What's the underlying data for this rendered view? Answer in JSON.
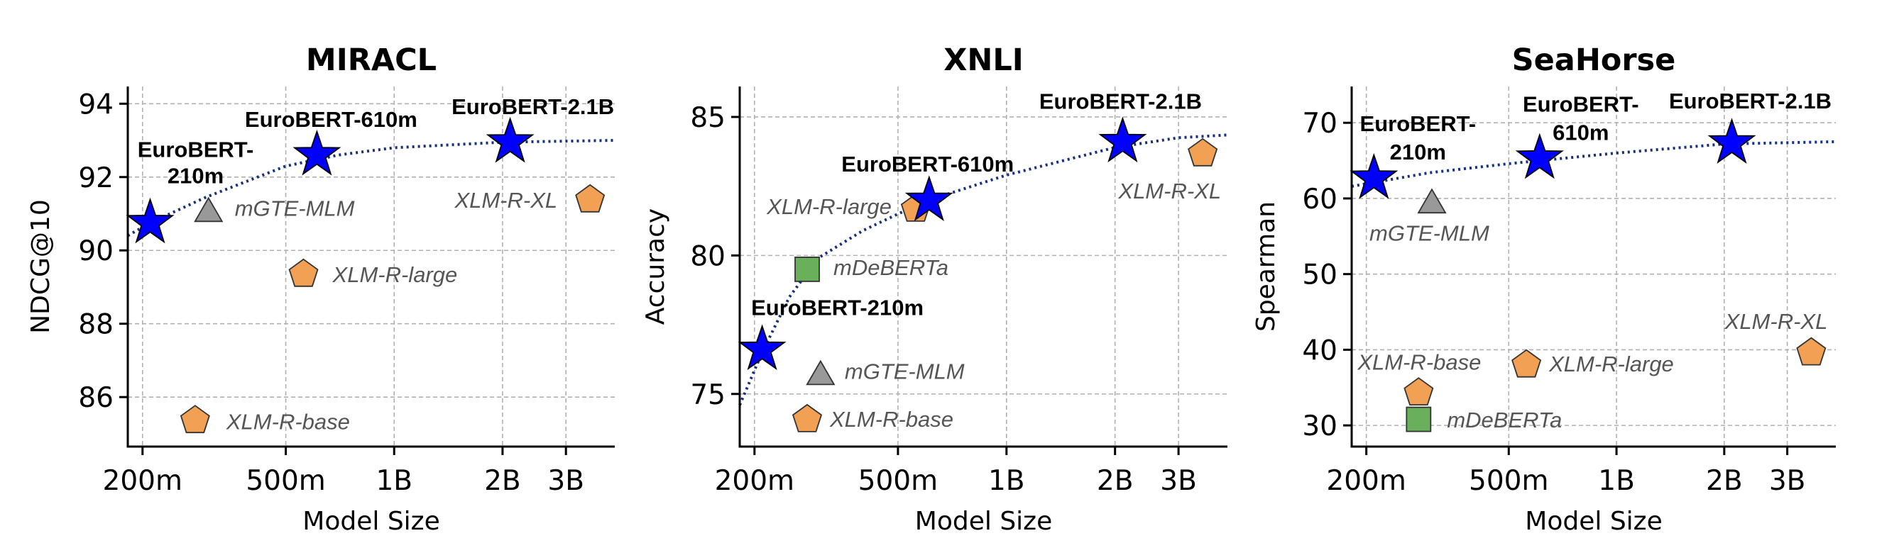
{
  "chart_data": [
    {
      "type": "scatter",
      "title": "MIRACL",
      "xlabel": "Model Size",
      "ylabel": "NDCG@10",
      "xscale": "log",
      "xlim": [
        182,
        4100
      ],
      "ylim": [
        84.65,
        94.47
      ],
      "xticks": [
        {
          "value": 200,
          "label": "200m"
        },
        {
          "value": 500,
          "label": "500m"
        },
        {
          "value": 1000,
          "label": "1B"
        },
        {
          "value": 2000,
          "label": "2B"
        },
        {
          "value": 3000,
          "label": "3B"
        }
      ],
      "yticks": [
        86,
        88,
        90,
        92,
        94
      ],
      "grid": true,
      "points": [
        {
          "label": "EuroBERT-210m",
          "label_lines": [
            "EuroBERT-",
            "210m"
          ],
          "x": 210,
          "y": 90.75,
          "marker": "star",
          "color": "#0000ff"
        },
        {
          "label": "EuroBERT-610m",
          "label_lines": [
            "EuroBERT-610m"
          ],
          "x": 610,
          "y": 92.6,
          "marker": "star",
          "color": "#0000ff"
        },
        {
          "label": "EuroBERT-2.1B",
          "label_lines": [
            "EuroBERT-2.1B"
          ],
          "x": 2100,
          "y": 92.95,
          "marker": "star",
          "color": "#0000ff"
        },
        {
          "label": "mGTE-MLM",
          "label_lines": [
            "mGTE-MLM"
          ],
          "x": 305,
          "y": 91.1,
          "marker": "triangle",
          "color": "#999999"
        },
        {
          "label": "XLM-R-large",
          "label_lines": [
            "XLM-R-large"
          ],
          "x": 560,
          "y": 89.37,
          "marker": "pentagon",
          "color": "#f2a154"
        },
        {
          "label": "XLM-R-base",
          "label_lines": [
            "XLM-R-base"
          ],
          "x": 280,
          "y": 85.38,
          "marker": "pentagon",
          "color": "#f2a154"
        },
        {
          "label": "XLM-R-XL",
          "label_lines": [
            "XLM-R-XL"
          ],
          "x": 3500,
          "y": 91.4,
          "marker": "pentagon",
          "color": "#f2a154"
        }
      ],
      "trend": {
        "style": "dotted",
        "color": "#15307f",
        "x": [
          182,
          210,
          300,
          500,
          700,
          1000,
          2000,
          4100
        ],
        "y": [
          90.4,
          90.75,
          91.45,
          92.3,
          92.6,
          92.8,
          92.95,
          93.0
        ]
      }
    },
    {
      "type": "scatter",
      "title": "XNLI",
      "xlabel": "Model Size",
      "ylabel": "Accuracy",
      "xscale": "log",
      "xlim": [
        182,
        4100
      ],
      "ylim": [
        73.1,
        86.1
      ],
      "xticks": [
        {
          "value": 200,
          "label": "200m"
        },
        {
          "value": 500,
          "label": "500m"
        },
        {
          "value": 1000,
          "label": "1B"
        },
        {
          "value": 2000,
          "label": "2B"
        },
        {
          "value": 3000,
          "label": "3B"
        }
      ],
      "yticks": [
        75,
        80,
        85
      ],
      "grid": true,
      "points": [
        {
          "label": "XLM-R-large",
          "label_lines": [
            "XLM-R-large"
          ],
          "x": 560,
          "y": 81.7,
          "marker": "pentagon",
          "color": "#f2a154"
        },
        {
          "label": "EuroBERT-210m",
          "label_lines": [
            "EuroBERT-210m"
          ],
          "x": 210,
          "y": 76.6,
          "marker": "star",
          "color": "#0000ff"
        },
        {
          "label": "EuroBERT-610m",
          "label_lines": [
            "EuroBERT-610m"
          ],
          "x": 610,
          "y": 81.98,
          "marker": "star",
          "color": "#0000ff"
        },
        {
          "label": "EuroBERT-2.1B",
          "label_lines": [
            "EuroBERT-2.1B"
          ],
          "x": 2100,
          "y": 84.1,
          "marker": "star",
          "color": "#0000ff"
        },
        {
          "label": "XLM-R-XL",
          "label_lines": [
            "XLM-R-XL"
          ],
          "x": 3500,
          "y": 83.7,
          "marker": "pentagon",
          "color": "#f2a154"
        },
        {
          "label": "mDeBERTa",
          "label_lines": [
            "mDeBERTa"
          ],
          "x": 280,
          "y": 79.5,
          "marker": "square",
          "color": "#6aaf5c"
        },
        {
          "label": "mGTE-MLM",
          "label_lines": [
            "mGTE-MLM"
          ],
          "x": 305,
          "y": 75.75,
          "marker": "triangle",
          "color": "#999999"
        },
        {
          "label": "XLM-R-base",
          "label_lines": [
            "XLM-R-base"
          ],
          "x": 280,
          "y": 74.1,
          "marker": "pentagon",
          "color": "#f2a154"
        }
      ],
      "trend": {
        "style": "dotted",
        "color": "#15307f",
        "x": [
          182,
          210,
          250,
          300,
          400,
          500,
          610,
          1000,
          2000,
          3000,
          4100
        ],
        "y": [
          74.6,
          76.5,
          78.5,
          79.9,
          80.9,
          81.5,
          82.0,
          82.9,
          83.9,
          84.25,
          84.35
        ]
      }
    },
    {
      "type": "scatter",
      "title": "SeaHorse",
      "xlabel": "Model Size",
      "ylabel": "Spearman",
      "xscale": "log",
      "xlim": [
        182,
        4100
      ],
      "ylim": [
        27.2,
        74.8
      ],
      "xticks": [
        {
          "value": 200,
          "label": "200m"
        },
        {
          "value": 500,
          "label": "500m"
        },
        {
          "value": 1000,
          "label": "1B"
        },
        {
          "value": 2000,
          "label": "2B"
        },
        {
          "value": 3000,
          "label": "3B"
        }
      ],
      "yticks": [
        30,
        40,
        50,
        60,
        70
      ],
      "grid": true,
      "points": [
        {
          "label": "EuroBERT-210m",
          "label_lines": [
            "EuroBERT-",
            "210m"
          ],
          "x": 210,
          "y": 62.65,
          "marker": "star",
          "color": "#0000ff"
        },
        {
          "label": "EuroBERT-610m",
          "label_lines": [
            "EuroBERT-",
            "610m"
          ],
          "x": 610,
          "y": 65.3,
          "marker": "star",
          "color": "#0000ff"
        },
        {
          "label": "EuroBERT-2.1B",
          "label_lines": [
            "EuroBERT-2.1B"
          ],
          "x": 2100,
          "y": 67.3,
          "marker": "star",
          "color": "#0000ff"
        },
        {
          "label": "mGTE-MLM",
          "label_lines": [
            "mGTE-MLM"
          ],
          "x": 305,
          "y": 59.6,
          "marker": "triangle",
          "color": "#999999"
        },
        {
          "label": "XLM-R-base",
          "label_lines": [
            "XLM-R-base"
          ],
          "x": 280,
          "y": 34.4,
          "marker": "pentagon",
          "color": "#f2a154"
        },
        {
          "label": "mDeBERTa",
          "label_lines": [
            "mDeBERTa"
          ],
          "x": 280,
          "y": 30.8,
          "marker": "square",
          "color": "#6aaf5c"
        },
        {
          "label": "XLM-R-large",
          "label_lines": [
            "XLM-R-large"
          ],
          "x": 560,
          "y": 38.1,
          "marker": "pentagon",
          "color": "#f2a154"
        },
        {
          "label": "XLM-R-XL",
          "label_lines": [
            "XLM-R-XL"
          ],
          "x": 3500,
          "y": 39.7,
          "marker": "pentagon",
          "color": "#f2a154"
        }
      ],
      "trend": {
        "style": "dotted",
        "color": "#15307f",
        "x": [
          182,
          300,
          500,
          1000,
          2000,
          4100
        ],
        "y": [
          61.6,
          63.4,
          64.6,
          66.0,
          67.2,
          67.5
        ]
      }
    }
  ]
}
